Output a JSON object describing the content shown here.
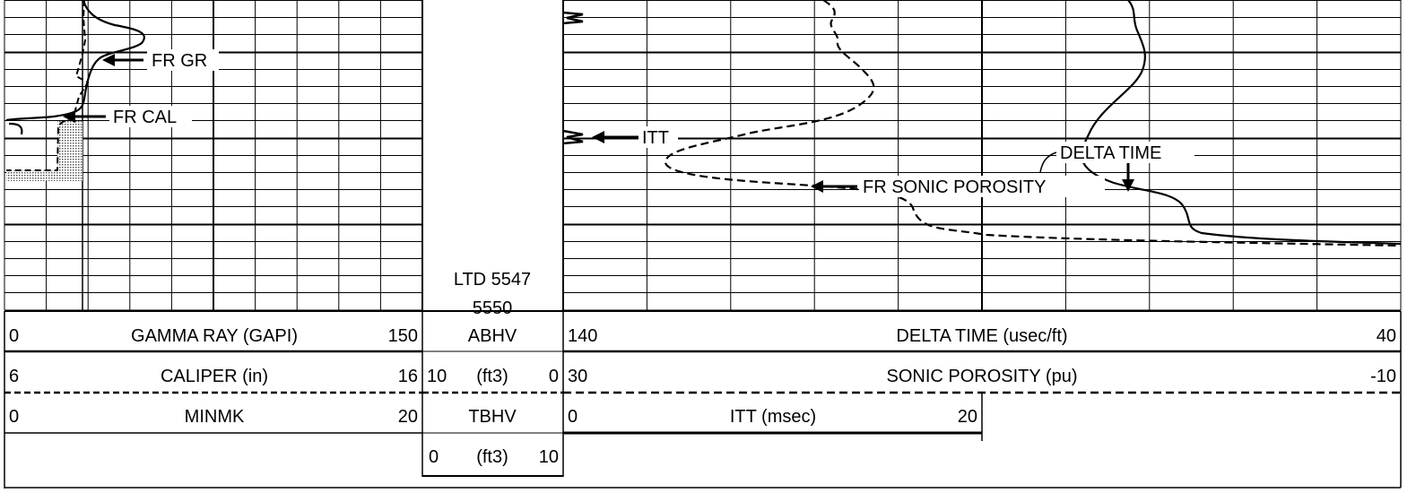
{
  "track1_annotations": {
    "fr_gr": "FR GR",
    "fr_cal": "FR CAL"
  },
  "track3_annotations": {
    "itt": "ITT",
    "delta_time": "DELTA TIME",
    "fr_sonic_porosity": "FR SONIC POROSITY"
  },
  "depth_track": {
    "ltd": "LTD 5547",
    "depth": "5550"
  },
  "header": {
    "gamma_ray": {
      "min": "0",
      "title": "GAMMA RAY (GAPI)",
      "max": "150"
    },
    "caliper": {
      "min": "6",
      "title": "CALIPER (in)",
      "max": "16"
    },
    "minmk": {
      "min": "0",
      "title": "MINMK",
      "max": "20"
    },
    "abhv": {
      "title": "ABHV",
      "min": "10",
      "unit": "(ft3)",
      "max": "0"
    },
    "tbhv": {
      "title": "TBHV",
      "min": "0",
      "unit": "(ft3)",
      "max": "10"
    },
    "delta_time": {
      "min": "140",
      "title": "DELTA TIME (usec/ft)",
      "max": "40"
    },
    "sonic_porosity": {
      "min": "30",
      "title": "SONIC POROSITY (pu)",
      "max": "-10"
    },
    "itt": {
      "min": "0",
      "title": "ITT (msec)",
      "max": "20"
    }
  }
}
